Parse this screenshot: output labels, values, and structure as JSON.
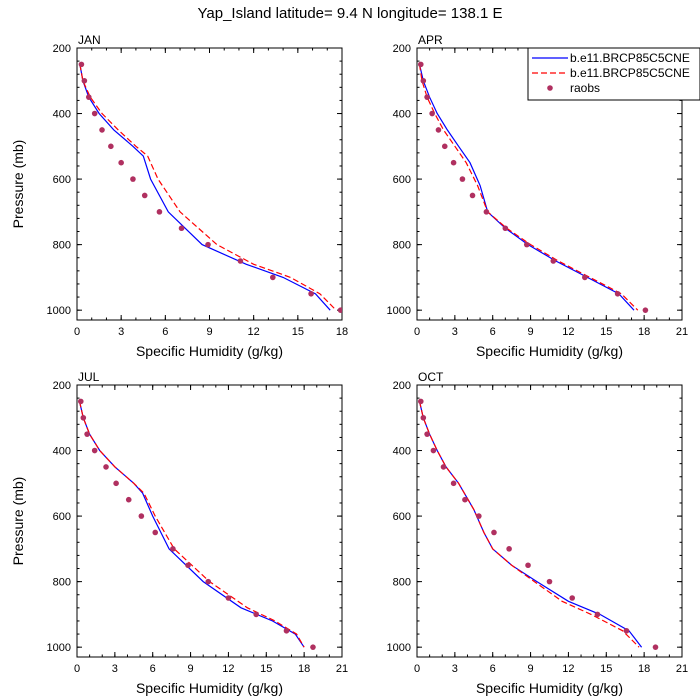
{
  "figure_title": "Yap_Island  latitude= 9.4 N longitude= 138.1 E",
  "legend": {
    "placement": "top-right of APR panel",
    "entries": [
      {
        "label": "b.e11.BRCP85C5CNE",
        "color": "#0000ff",
        "style": "solid"
      },
      {
        "label": "b.e11.BRCP85C5CNE",
        "color": "#ff0000",
        "style": "dashed"
      },
      {
        "label": "raobs",
        "color": "#b03060",
        "style": "markers"
      }
    ]
  },
  "chart_data": [
    {
      "type": "line",
      "panel": "JAN",
      "xlabel": "Specific Humidity (g/kg)",
      "ylabel": "Pressure (mb)",
      "xlim": [
        0,
        18
      ],
      "xticks": [
        0,
        3,
        6,
        9,
        12,
        15,
        18
      ],
      "ylim": [
        1030,
        200
      ],
      "yticks": [
        200,
        400,
        600,
        800,
        1000
      ],
      "y_reversed": true,
      "series": [
        {
          "color": "#0000ff",
          "style": "solid",
          "points": [
            [
              0.2,
              250
            ],
            [
              0.4,
              300
            ],
            [
              0.8,
              350
            ],
            [
              1.5,
              400
            ],
            [
              2.5,
              450
            ],
            [
              3.8,
              500
            ],
            [
              4.5,
              530
            ],
            [
              5.0,
              600
            ],
            [
              6.2,
              700
            ],
            [
              8.5,
              800
            ],
            [
              11.5,
              860
            ],
            [
              14.0,
              900
            ],
            [
              16.2,
              950
            ],
            [
              17.2,
              1000
            ]
          ]
        },
        {
          "color": "#ff0000",
          "style": "dashed",
          "points": [
            [
              0.2,
              250
            ],
            [
              0.4,
              300
            ],
            [
              0.9,
              350
            ],
            [
              1.7,
              400
            ],
            [
              2.8,
              450
            ],
            [
              4.0,
              500
            ],
            [
              4.8,
              530
            ],
            [
              5.5,
              600
            ],
            [
              7.0,
              700
            ],
            [
              9.5,
              800
            ],
            [
              12.0,
              860
            ],
            [
              14.5,
              900
            ],
            [
              16.5,
              950
            ],
            [
              17.6,
              1000
            ]
          ]
        },
        {
          "color": "#b03060",
          "style": "markers",
          "points": [
            [
              0.3,
              250
            ],
            [
              0.5,
              300
            ],
            [
              0.8,
              350
            ],
            [
              1.2,
              400
            ],
            [
              1.7,
              450
            ],
            [
              2.3,
              500
            ],
            [
              3.0,
              550
            ],
            [
              3.8,
              600
            ],
            [
              4.6,
              650
            ],
            [
              5.6,
              700
            ],
            [
              7.1,
              750
            ],
            [
              8.9,
              800
            ],
            [
              11.1,
              850
            ],
            [
              13.3,
              900
            ],
            [
              15.9,
              950
            ],
            [
              17.9,
              1000
            ]
          ]
        }
      ]
    },
    {
      "type": "line",
      "panel": "APR",
      "xlabel": "Specific Humidity (g/kg)",
      "ylabel": "",
      "xlim": [
        0,
        21
      ],
      "xticks": [
        0,
        3,
        6,
        9,
        12,
        15,
        18,
        21
      ],
      "ylim": [
        1030,
        200
      ],
      "yticks": [
        200,
        400,
        600,
        800,
        1000
      ],
      "y_reversed": true,
      "series": [
        {
          "color": "#0000ff",
          "style": "solid",
          "points": [
            [
              0.2,
              250
            ],
            [
              0.5,
              300
            ],
            [
              1.0,
              350
            ],
            [
              1.6,
              400
            ],
            [
              2.4,
              450
            ],
            [
              3.3,
              500
            ],
            [
              4.2,
              550
            ],
            [
              5.0,
              620
            ],
            [
              5.6,
              700
            ],
            [
              7.0,
              750
            ],
            [
              8.8,
              800
            ],
            [
              11.0,
              850
            ],
            [
              13.5,
              900
            ],
            [
              16.0,
              950
            ],
            [
              17.2,
              1000
            ]
          ]
        },
        {
          "color": "#ff0000",
          "style": "dashed",
          "points": [
            [
              0.2,
              250
            ],
            [
              0.4,
              300
            ],
            [
              0.8,
              350
            ],
            [
              1.4,
              400
            ],
            [
              2.1,
              450
            ],
            [
              3.0,
              500
            ],
            [
              3.9,
              550
            ],
            [
              4.8,
              620
            ],
            [
              5.6,
              700
            ],
            [
              7.1,
              750
            ],
            [
              9.0,
              800
            ],
            [
              11.2,
              850
            ],
            [
              13.7,
              900
            ],
            [
              16.2,
              950
            ],
            [
              17.5,
              1000
            ]
          ]
        },
        {
          "color": "#b03060",
          "style": "markers",
          "points": [
            [
              0.3,
              250
            ],
            [
              0.5,
              300
            ],
            [
              0.8,
              350
            ],
            [
              1.2,
              400
            ],
            [
              1.7,
              450
            ],
            [
              2.2,
              500
            ],
            [
              2.9,
              550
            ],
            [
              3.6,
              600
            ],
            [
              4.4,
              650
            ],
            [
              5.5,
              700
            ],
            [
              7.0,
              750
            ],
            [
              8.7,
              800
            ],
            [
              10.8,
              850
            ],
            [
              13.3,
              900
            ],
            [
              15.9,
              950
            ],
            [
              18.1,
              1000
            ]
          ]
        }
      ]
    },
    {
      "type": "line",
      "panel": "JUL",
      "xlabel": "Specific Humidity (g/kg)",
      "ylabel": "Pressure (mb)",
      "xlim": [
        0,
        21
      ],
      "xticks": [
        0,
        3,
        6,
        9,
        12,
        15,
        18,
        21
      ],
      "ylim": [
        1030,
        200
      ],
      "yticks": [
        200,
        400,
        600,
        800,
        1000
      ],
      "y_reversed": true,
      "series": [
        {
          "color": "#0000ff",
          "style": "solid",
          "points": [
            [
              0.2,
              250
            ],
            [
              0.5,
              300
            ],
            [
              1.0,
              350
            ],
            [
              1.8,
              400
            ],
            [
              3.0,
              450
            ],
            [
              4.5,
              500
            ],
            [
              5.2,
              530
            ],
            [
              6.0,
              600
            ],
            [
              7.3,
              700
            ],
            [
              10.0,
              800
            ],
            [
              13.0,
              880
            ],
            [
              15.5,
              920
            ],
            [
              17.3,
              960
            ],
            [
              18.0,
              1000
            ]
          ]
        },
        {
          "color": "#ff0000",
          "style": "dashed",
          "points": [
            [
              0.2,
              250
            ],
            [
              0.5,
              300
            ],
            [
              1.0,
              350
            ],
            [
              1.8,
              400
            ],
            [
              3.0,
              450
            ],
            [
              4.5,
              500
            ],
            [
              5.3,
              530
            ],
            [
              6.2,
              600
            ],
            [
              7.7,
              700
            ],
            [
              10.5,
              800
            ],
            [
              13.5,
              880
            ],
            [
              15.7,
              920
            ],
            [
              17.4,
              960
            ],
            [
              18.0,
              1000
            ]
          ]
        },
        {
          "color": "#b03060",
          "style": "markers",
          "points": [
            [
              0.3,
              250
            ],
            [
              0.5,
              300
            ],
            [
              0.8,
              350
            ],
            [
              1.4,
              400
            ],
            [
              2.3,
              450
            ],
            [
              3.1,
              500
            ],
            [
              4.1,
              550
            ],
            [
              5.1,
              600
            ],
            [
              6.2,
              650
            ],
            [
              7.6,
              700
            ],
            [
              8.8,
              750
            ],
            [
              10.4,
              800
            ],
            [
              12.0,
              850
            ],
            [
              14.2,
              900
            ],
            [
              16.6,
              950
            ],
            [
              18.7,
              1000
            ]
          ]
        }
      ]
    },
    {
      "type": "line",
      "panel": "OCT",
      "xlabel": "Specific Humidity (g/kg)",
      "ylabel": "",
      "xlim": [
        0,
        21
      ],
      "xticks": [
        0,
        3,
        6,
        9,
        12,
        15,
        18,
        21
      ],
      "ylim": [
        1030,
        200
      ],
      "yticks": [
        200,
        400,
        600,
        800,
        1000
      ],
      "y_reversed": true,
      "series": [
        {
          "color": "#0000ff",
          "style": "solid",
          "points": [
            [
              0.2,
              250
            ],
            [
              0.5,
              300
            ],
            [
              1.0,
              350
            ],
            [
              1.6,
              400
            ],
            [
              2.3,
              450
            ],
            [
              3.3,
              500
            ],
            [
              4.5,
              580
            ],
            [
              5.3,
              650
            ],
            [
              6.0,
              700
            ],
            [
              7.5,
              750
            ],
            [
              9.5,
              800
            ],
            [
              12.0,
              860
            ],
            [
              14.5,
              900
            ],
            [
              16.8,
              950
            ],
            [
              17.8,
              1000
            ]
          ]
        },
        {
          "color": "#ff0000",
          "style": "dashed",
          "points": [
            [
              0.2,
              250
            ],
            [
              0.5,
              300
            ],
            [
              1.0,
              350
            ],
            [
              1.6,
              400
            ],
            [
              2.3,
              450
            ],
            [
              3.3,
              500
            ],
            [
              4.5,
              580
            ],
            [
              5.3,
              650
            ],
            [
              6.0,
              700
            ],
            [
              7.5,
              750
            ],
            [
              9.3,
              800
            ],
            [
              11.5,
              860
            ],
            [
              13.8,
              900
            ],
            [
              16.3,
              950
            ],
            [
              17.6,
              1000
            ]
          ]
        },
        {
          "color": "#b03060",
          "style": "markers",
          "points": [
            [
              0.3,
              250
            ],
            [
              0.5,
              300
            ],
            [
              0.8,
              350
            ],
            [
              1.3,
              400
            ],
            [
              2.1,
              450
            ],
            [
              2.9,
              500
            ],
            [
              3.8,
              550
            ],
            [
              4.9,
              600
            ],
            [
              6.1,
              650
            ],
            [
              7.3,
              700
            ],
            [
              8.8,
              750
            ],
            [
              10.5,
              800
            ],
            [
              12.3,
              850
            ],
            [
              14.3,
              900
            ],
            [
              16.6,
              950
            ],
            [
              18.9,
              1000
            ]
          ]
        }
      ]
    }
  ]
}
